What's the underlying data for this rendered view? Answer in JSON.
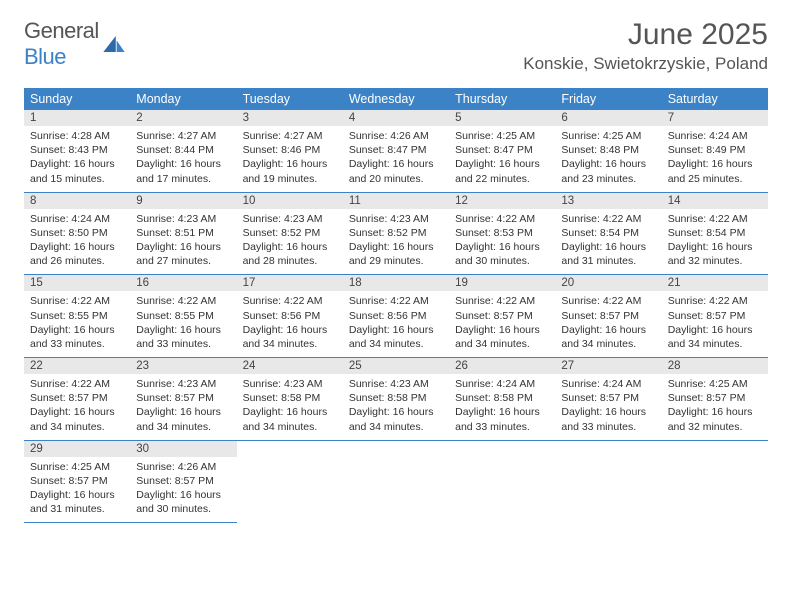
{
  "logo": {
    "text_a": "General",
    "text_b": "Blue"
  },
  "title": "June 2025",
  "location": "Konskie, Swietokrzyskie, Poland",
  "colors": {
    "header_bg": "#3b82c7",
    "header_text": "#ffffff",
    "daynum_bg": "#e8e8e8",
    "cell_border": "#3b82c7",
    "body_text": "#333333",
    "title_text": "#555555"
  },
  "day_names": [
    "Sunday",
    "Monday",
    "Tuesday",
    "Wednesday",
    "Thursday",
    "Friday",
    "Saturday"
  ],
  "weeks": [
    [
      {
        "n": "1",
        "sr": "4:28 AM",
        "ss": "8:43 PM",
        "dl": "16 hours and 15 minutes."
      },
      {
        "n": "2",
        "sr": "4:27 AM",
        "ss": "8:44 PM",
        "dl": "16 hours and 17 minutes."
      },
      {
        "n": "3",
        "sr": "4:27 AM",
        "ss": "8:46 PM",
        "dl": "16 hours and 19 minutes."
      },
      {
        "n": "4",
        "sr": "4:26 AM",
        "ss": "8:47 PM",
        "dl": "16 hours and 20 minutes."
      },
      {
        "n": "5",
        "sr": "4:25 AM",
        "ss": "8:47 PM",
        "dl": "16 hours and 22 minutes."
      },
      {
        "n": "6",
        "sr": "4:25 AM",
        "ss": "8:48 PM",
        "dl": "16 hours and 23 minutes."
      },
      {
        "n": "7",
        "sr": "4:24 AM",
        "ss": "8:49 PM",
        "dl": "16 hours and 25 minutes."
      }
    ],
    [
      {
        "n": "8",
        "sr": "4:24 AM",
        "ss": "8:50 PM",
        "dl": "16 hours and 26 minutes."
      },
      {
        "n": "9",
        "sr": "4:23 AM",
        "ss": "8:51 PM",
        "dl": "16 hours and 27 minutes."
      },
      {
        "n": "10",
        "sr": "4:23 AM",
        "ss": "8:52 PM",
        "dl": "16 hours and 28 minutes."
      },
      {
        "n": "11",
        "sr": "4:23 AM",
        "ss": "8:52 PM",
        "dl": "16 hours and 29 minutes."
      },
      {
        "n": "12",
        "sr": "4:22 AM",
        "ss": "8:53 PM",
        "dl": "16 hours and 30 minutes."
      },
      {
        "n": "13",
        "sr": "4:22 AM",
        "ss": "8:54 PM",
        "dl": "16 hours and 31 minutes."
      },
      {
        "n": "14",
        "sr": "4:22 AM",
        "ss": "8:54 PM",
        "dl": "16 hours and 32 minutes."
      }
    ],
    [
      {
        "n": "15",
        "sr": "4:22 AM",
        "ss": "8:55 PM",
        "dl": "16 hours and 33 minutes."
      },
      {
        "n": "16",
        "sr": "4:22 AM",
        "ss": "8:55 PM",
        "dl": "16 hours and 33 minutes."
      },
      {
        "n": "17",
        "sr": "4:22 AM",
        "ss": "8:56 PM",
        "dl": "16 hours and 34 minutes."
      },
      {
        "n": "18",
        "sr": "4:22 AM",
        "ss": "8:56 PM",
        "dl": "16 hours and 34 minutes."
      },
      {
        "n": "19",
        "sr": "4:22 AM",
        "ss": "8:57 PM",
        "dl": "16 hours and 34 minutes."
      },
      {
        "n": "20",
        "sr": "4:22 AM",
        "ss": "8:57 PM",
        "dl": "16 hours and 34 minutes."
      },
      {
        "n": "21",
        "sr": "4:22 AM",
        "ss": "8:57 PM",
        "dl": "16 hours and 34 minutes."
      }
    ],
    [
      {
        "n": "22",
        "sr": "4:22 AM",
        "ss": "8:57 PM",
        "dl": "16 hours and 34 minutes."
      },
      {
        "n": "23",
        "sr": "4:23 AM",
        "ss": "8:57 PM",
        "dl": "16 hours and 34 minutes."
      },
      {
        "n": "24",
        "sr": "4:23 AM",
        "ss": "8:58 PM",
        "dl": "16 hours and 34 minutes."
      },
      {
        "n": "25",
        "sr": "4:23 AM",
        "ss": "8:58 PM",
        "dl": "16 hours and 34 minutes."
      },
      {
        "n": "26",
        "sr": "4:24 AM",
        "ss": "8:58 PM",
        "dl": "16 hours and 33 minutes."
      },
      {
        "n": "27",
        "sr": "4:24 AM",
        "ss": "8:57 PM",
        "dl": "16 hours and 33 minutes."
      },
      {
        "n": "28",
        "sr": "4:25 AM",
        "ss": "8:57 PM",
        "dl": "16 hours and 32 minutes."
      }
    ],
    [
      {
        "n": "29",
        "sr": "4:25 AM",
        "ss": "8:57 PM",
        "dl": "16 hours and 31 minutes."
      },
      {
        "n": "30",
        "sr": "4:26 AM",
        "ss": "8:57 PM",
        "dl": "16 hours and 30 minutes."
      },
      null,
      null,
      null,
      null,
      null
    ]
  ],
  "labels": {
    "sunrise": "Sunrise: ",
    "sunset": "Sunset: ",
    "daylight": "Daylight: "
  }
}
